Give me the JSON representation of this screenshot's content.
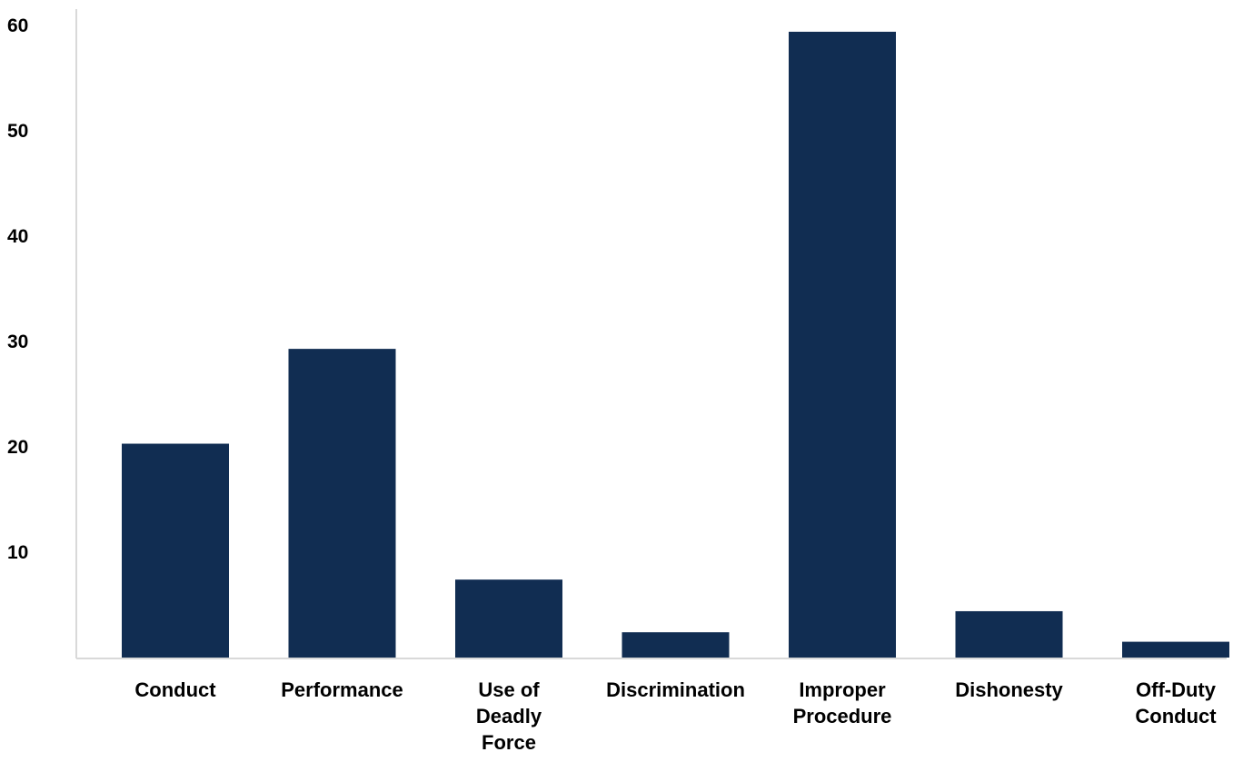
{
  "chart_data": {
    "type": "bar",
    "title": "",
    "xlabel": "",
    "ylabel": "",
    "categories": [
      [
        "Conduct"
      ],
      [
        "Performance"
      ],
      [
        "Use of",
        "Deadly",
        "Force"
      ],
      [
        "Discrimination"
      ],
      [
        "Improper",
        "Procedure"
      ],
      [
        "Dishonesty"
      ],
      [
        "Off-Duty",
        "Conduct"
      ]
    ],
    "values": [
      20.3,
      29.3,
      7.4,
      2.4,
      59.4,
      4.4,
      1.5
    ],
    "y_ticks": [
      "10",
      "20",
      "30",
      "40",
      "50",
      "60"
    ],
    "y_tick_values": [
      10,
      20,
      30,
      40,
      50,
      60
    ],
    "ylim": [
      0,
      60
    ],
    "grid": false,
    "legend": "none",
    "bar_color": "#112d52",
    "axis_color": "#d9d9d9"
  }
}
